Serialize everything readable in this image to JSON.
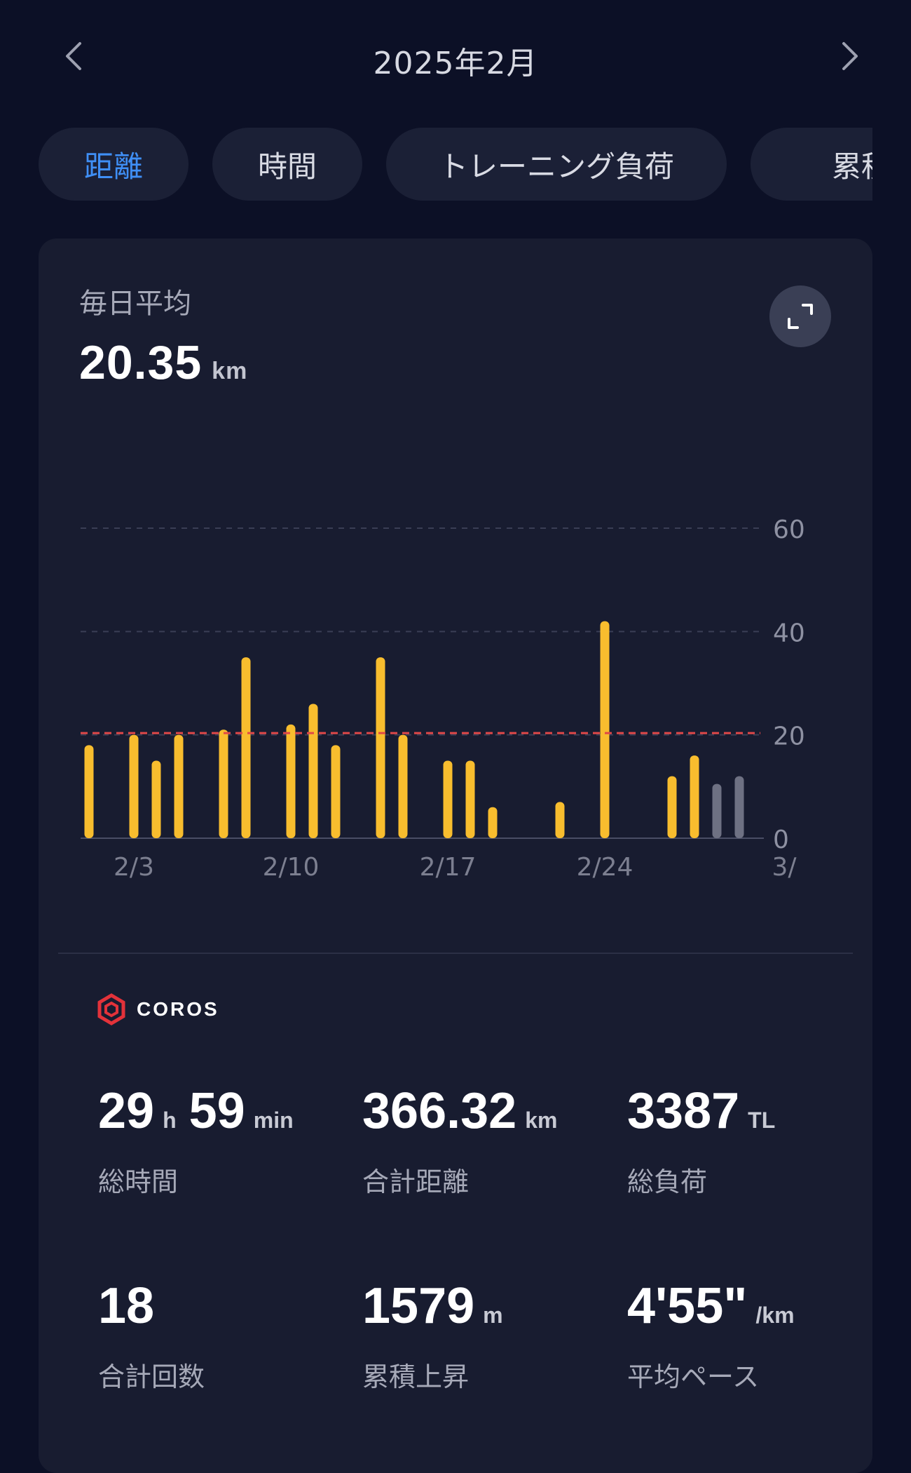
{
  "header": {
    "title": "2025年2月",
    "prev_icon": "chevron-left-icon",
    "next_icon": "chevron-right-icon"
  },
  "tabs": [
    {
      "label": "距離",
      "active": true
    },
    {
      "label": "時間",
      "active": false
    },
    {
      "label": "トレーニング負荷",
      "active": false
    },
    {
      "label": "累積上昇",
      "active": false
    }
  ],
  "summary": {
    "avg_label": "毎日平均",
    "avg_value": "20.35",
    "avg_unit": "km",
    "expand_icon": "expand-icon"
  },
  "chart_data": {
    "type": "bar",
    "x": [
      "2/1",
      "2/2",
      "2/3",
      "2/4",
      "2/5",
      "2/6",
      "2/7",
      "2/8",
      "2/9",
      "2/10",
      "2/11",
      "2/12",
      "2/13",
      "2/14",
      "2/15",
      "2/16",
      "2/17",
      "2/18",
      "2/19",
      "2/20",
      "2/21",
      "2/22",
      "2/23",
      "2/24",
      "2/25",
      "2/26",
      "2/27",
      "2/28",
      "3/1",
      "3/2"
    ],
    "values": [
      18,
      0,
      20,
      15,
      20,
      0,
      21,
      35,
      0,
      22,
      26,
      18,
      0,
      35,
      20,
      0,
      15,
      15,
      6,
      0,
      0,
      7,
      0,
      42,
      0,
      0,
      12,
      16,
      10.5,
      12
    ],
    "bar_colors": [
      "#f8bd2e",
      "#f8bd2e",
      "#f8bd2e",
      "#f8bd2e",
      "#f8bd2e",
      "#f8bd2e",
      "#f8bd2e",
      "#f8bd2e",
      "#f8bd2e",
      "#f8bd2e",
      "#f8bd2e",
      "#f8bd2e",
      "#f8bd2e",
      "#f8bd2e",
      "#f8bd2e",
      "#f8bd2e",
      "#f8bd2e",
      "#f8bd2e",
      "#f8bd2e",
      "#f8bd2e",
      "#f8bd2e",
      "#f8bd2e",
      "#f8bd2e",
      "#f8bd2e",
      "#f8bd2e",
      "#f8bd2e",
      "#f8bd2e",
      "#f8bd2e",
      "#6e7183",
      "#6e7183"
    ],
    "x_tick_labels": [
      "2/3",
      "2/10",
      "2/17",
      "2/24",
      "3/"
    ],
    "x_tick_positions": [
      "2/3",
      "2/10",
      "2/17",
      "2/24",
      "3/3"
    ],
    "y_ticks": [
      0,
      20,
      40,
      60
    ],
    "ylim": [
      0,
      60
    ],
    "average_line": 20.35,
    "average_line_color": "#e04848",
    "grid": true,
    "title": "",
    "xlabel": "",
    "ylabel": ""
  },
  "brand": {
    "name": "COROS",
    "icon": "coros-logo-icon",
    "color": "#e3323a"
  },
  "stats": [
    {
      "value": "29",
      "unit": "h",
      "value2": "59",
      "unit2": "min",
      "label": "総時間"
    },
    {
      "value": "366.32",
      "unit": "km",
      "label": "合計距離"
    },
    {
      "value": "3387",
      "unit": "TL",
      "label": "総負荷"
    },
    {
      "value": "18",
      "unit": "",
      "label": "合計回数"
    },
    {
      "value": "1579",
      "unit": "m",
      "label": "累積上昇"
    },
    {
      "value": "4'55\"",
      "unit": "/km",
      "label": "平均ペース"
    }
  ]
}
